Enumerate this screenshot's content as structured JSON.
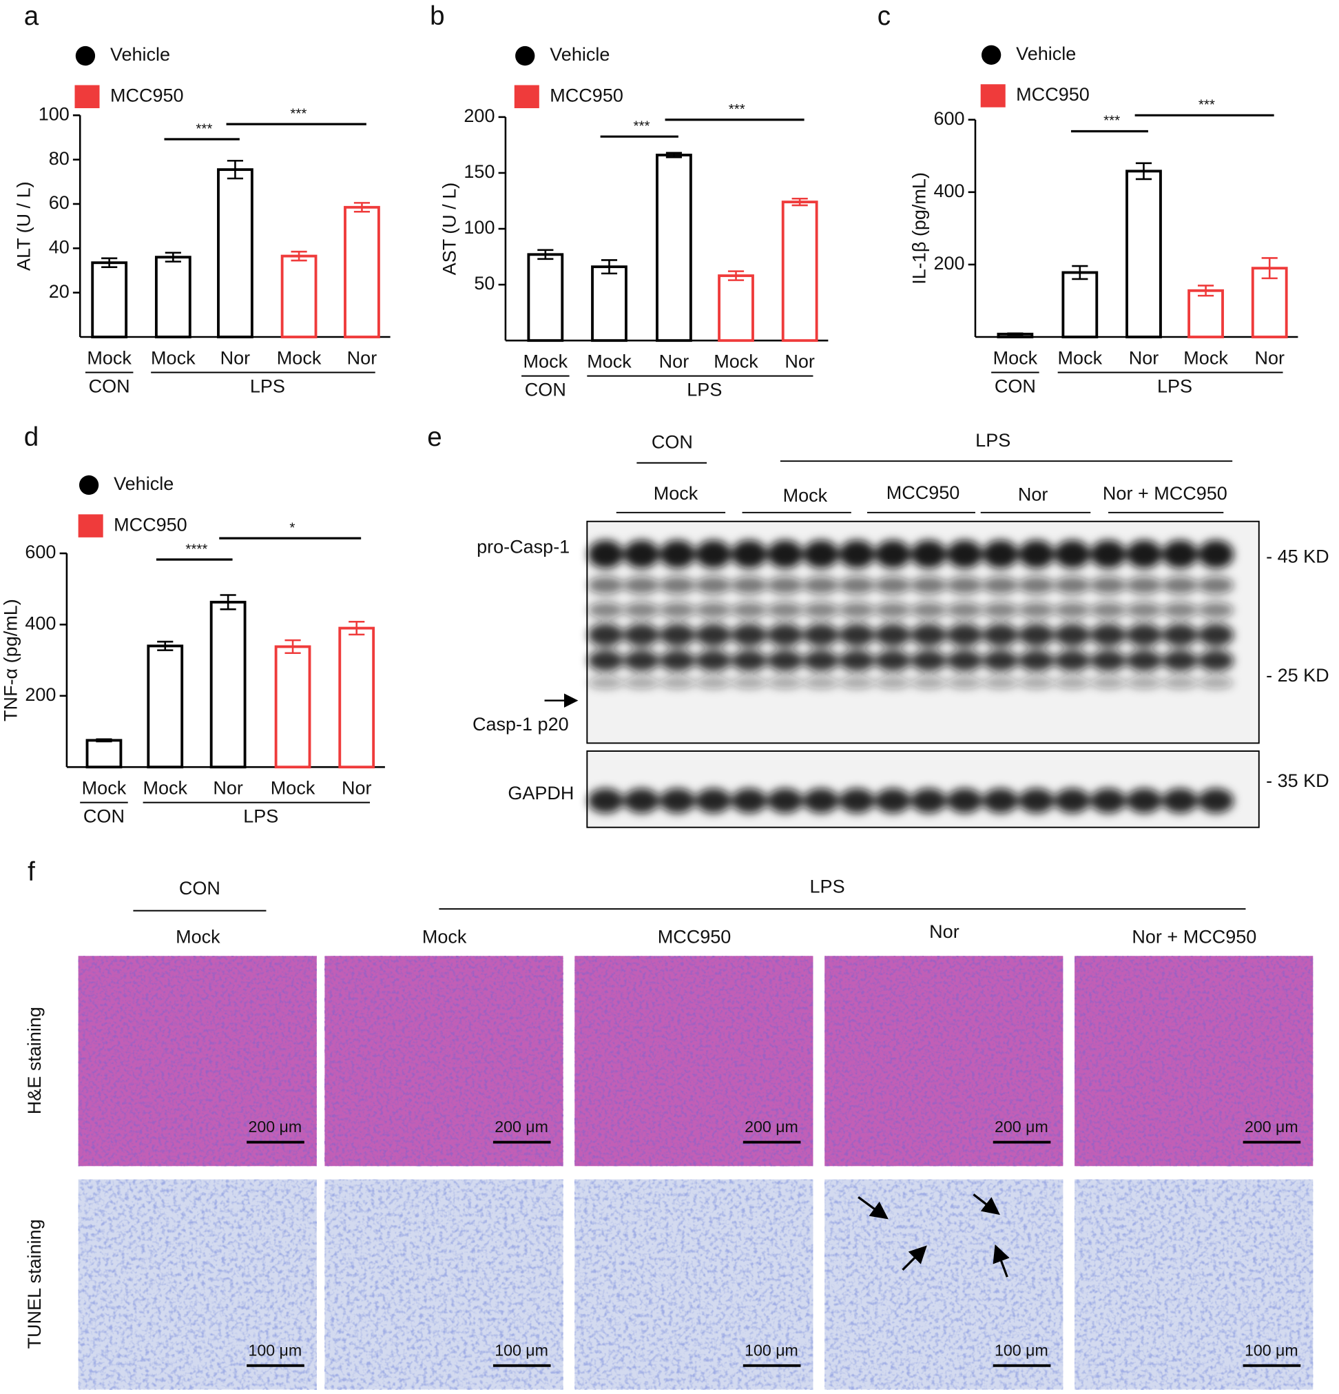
{
  "chart_data": [
    {
      "panel": "a",
      "type": "bar",
      "ylabel": "ALT  (U / L)",
      "categories": [
        "Mock",
        "Mock",
        "Nor",
        "Mock",
        "Nor"
      ],
      "groups": [
        "CON",
        "LPS"
      ],
      "series": [
        {
          "name": "Vehicle",
          "color": "#000000",
          "values": [
            33.5,
            36,
            75.5,
            null,
            null
          ],
          "errors": [
            2,
            2,
            4,
            null,
            null
          ]
        },
        {
          "name": "MCC950",
          "color": "#ef3b3b",
          "values": [
            null,
            null,
            null,
            36.5,
            58.5
          ],
          "errors": [
            null,
            null,
            null,
            2,
            2
          ]
        }
      ],
      "annotations": [
        "***",
        "***"
      ],
      "ylim": [
        0,
        100
      ],
      "yticks": [
        20,
        40,
        60,
        80,
        100
      ]
    },
    {
      "panel": "b",
      "type": "bar",
      "ylabel": "AST  (U / L)",
      "categories": [
        "Mock",
        "Mock",
        "Nor",
        "Mock",
        "Nor"
      ],
      "groups": [
        "CON",
        "LPS"
      ],
      "series": [
        {
          "name": "Vehicle",
          "color": "#000000",
          "values": [
            77,
            66,
            166,
            null,
            null
          ],
          "errors": [
            4,
            6,
            2,
            null,
            null
          ]
        },
        {
          "name": "MCC950",
          "color": "#ef3b3b",
          "values": [
            null,
            null,
            null,
            58,
            124
          ],
          "errors": [
            null,
            null,
            null,
            4,
            3
          ]
        }
      ],
      "annotations": [
        "***",
        "***"
      ],
      "ylim": [
        0,
        200
      ],
      "yticks": [
        50,
        100,
        150,
        200
      ]
    },
    {
      "panel": "c",
      "type": "bar",
      "ylabel": "IL-1β (pg/mL)",
      "categories": [
        "Mock",
        "Mock",
        "Nor",
        "Mock",
        "Nor"
      ],
      "groups": [
        "CON",
        "LPS"
      ],
      "series": [
        {
          "name": "Vehicle",
          "color": "#000000",
          "values": [
            8,
            178,
            458,
            null,
            null
          ],
          "errors": [
            2,
            18,
            22,
            null,
            null
          ]
        },
        {
          "name": "MCC950",
          "color": "#ef3b3b",
          "values": [
            null,
            null,
            null,
            128,
            190
          ],
          "errors": [
            null,
            null,
            null,
            14,
            28
          ]
        }
      ],
      "annotations": [
        "***",
        "***"
      ],
      "ylim": [
        0,
        600
      ],
      "yticks": [
        200,
        400,
        600
      ]
    },
    {
      "panel": "d",
      "type": "bar",
      "ylabel": "TNF-α (pg/mL)",
      "categories": [
        "Mock",
        "Mock",
        "Nor",
        "Mock",
        "Nor"
      ],
      "groups": [
        "CON",
        "LPS"
      ],
      "series": [
        {
          "name": "Vehicle",
          "color": "#000000",
          "values": [
            75,
            340,
            463,
            null,
            null
          ],
          "errors": [
            3,
            12,
            20,
            null,
            null
          ]
        },
        {
          "name": "MCC950",
          "color": "#ef3b3b",
          "values": [
            null,
            null,
            null,
            338,
            390
          ],
          "errors": [
            null,
            null,
            null,
            18,
            18
          ]
        }
      ],
      "annotations": [
        "****",
        "*"
      ],
      "ylim": [
        0,
        600
      ],
      "yticks": [
        200,
        400,
        600
      ]
    }
  ],
  "blot": {
    "panel": "e",
    "groups": [
      "CON",
      "LPS"
    ],
    "lanes": [
      "Mock",
      "Mock",
      "MCC950",
      "Nor",
      "Nor + MCC950"
    ],
    "bands": [
      "pro-Casp-1",
      "Casp-1  p20",
      "GAPDH"
    ],
    "markers": [
      "- 45 KD",
      "- 25 KD",
      "- 35 KD"
    ]
  },
  "histology": {
    "panel": "f",
    "groups": [
      "CON",
      "LPS"
    ],
    "columns": [
      "Mock",
      "Mock",
      "MCC950",
      "Nor",
      "Nor + MCC950"
    ],
    "rows": [
      "H&E staining",
      "TUNEL staining"
    ],
    "scale_bars": [
      "200 μm",
      "100 μm"
    ]
  }
}
